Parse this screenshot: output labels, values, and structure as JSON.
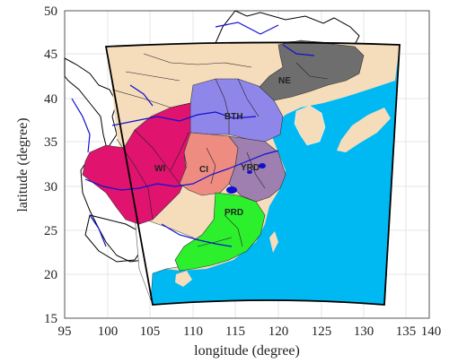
{
  "map": {
    "x_axis": {
      "label": "longitude (degree)",
      "range": [
        95,
        140
      ],
      "ticks": [
        "95",
        "100",
        "105",
        "110",
        "115",
        "120",
        "125",
        "130",
        "135",
        "140"
      ]
    },
    "y_axis": {
      "label": "latitude (degree)",
      "range": [
        15,
        50
      ],
      "ticks": [
        "15",
        "20",
        "25",
        "30",
        "35",
        "40",
        "45",
        "50"
      ]
    },
    "regions": [
      {
        "id": "NE",
        "label": "NE",
        "color": "#6e6e6e"
      },
      {
        "id": "BTH",
        "label": "BTH",
        "color": "#8f86ea"
      },
      {
        "id": "WI",
        "label": "WI",
        "color": "#e0136f"
      },
      {
        "id": "CI",
        "label": "CI",
        "color": "#ef8c82"
      },
      {
        "id": "YRD",
        "label": "YRD",
        "color": "#9e7fb0"
      },
      {
        "id": "PRD",
        "label": "PRD",
        "color": "#2cf02c"
      }
    ],
    "colors": {
      "ocean": "#00b9f2",
      "domain_land": "#f5dcbb",
      "outside_land": "#ffffff",
      "borders": "#000000",
      "rivers": "#1010d0",
      "grid": "#e6e6e6"
    }
  }
}
